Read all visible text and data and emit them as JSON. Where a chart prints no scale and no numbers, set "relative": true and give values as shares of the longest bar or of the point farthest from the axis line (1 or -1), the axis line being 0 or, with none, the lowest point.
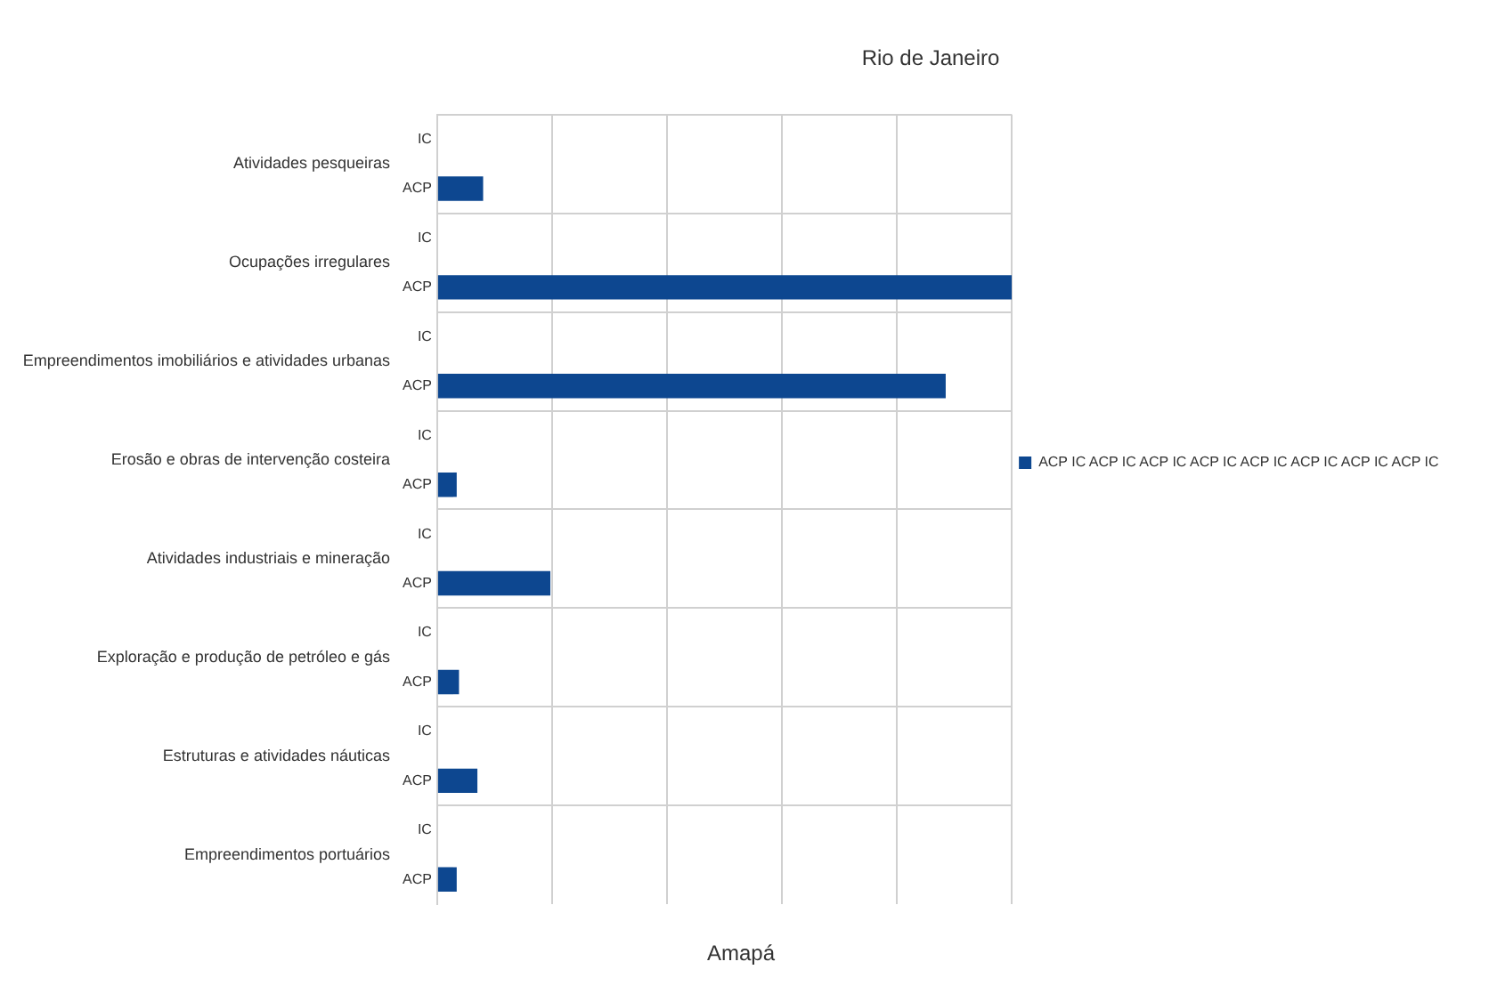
{
  "chart_data": {
    "type": "bar",
    "orientation": "horizontal",
    "relative": true,
    "title": "Rio de Janeiro",
    "categories": [
      "IC",
      "ACP",
      "IC",
      "ACP",
      "IC",
      "ACP",
      "IC",
      "ACP",
      "IC",
      "ACP",
      "IC",
      "ACP",
      "IC",
      "ACP",
      "IC",
      "ACP"
    ],
    "series": [
      {
        "name": "ACP IC ACP IC ACP IC ACP IC ACP IC ACP IC ACP IC ACP IC",
        "color": "#0d4790",
        "values": [
          null,
          0.08,
          null,
          1,
          null,
          0.885,
          null,
          0.034,
          null,
          0.197,
          null,
          0.038,
          null,
          0.07,
          null,
          0.034
        ]
      }
    ],
    "annotations": [
      "Atividades pesqueiras",
      "Ocupações irregulares",
      "Empreendimentos imobiliários e atividades urbanas",
      "Erosão e obras de intervenção costeira",
      "Atividades industriais e mineração",
      "Exploração e produção de petróleo e gás",
      "Estruturas e atividades náuticas",
      "Empreendimentos portuários",
      "Amapá"
    ],
    "grid": true,
    "legend": "right"
  }
}
